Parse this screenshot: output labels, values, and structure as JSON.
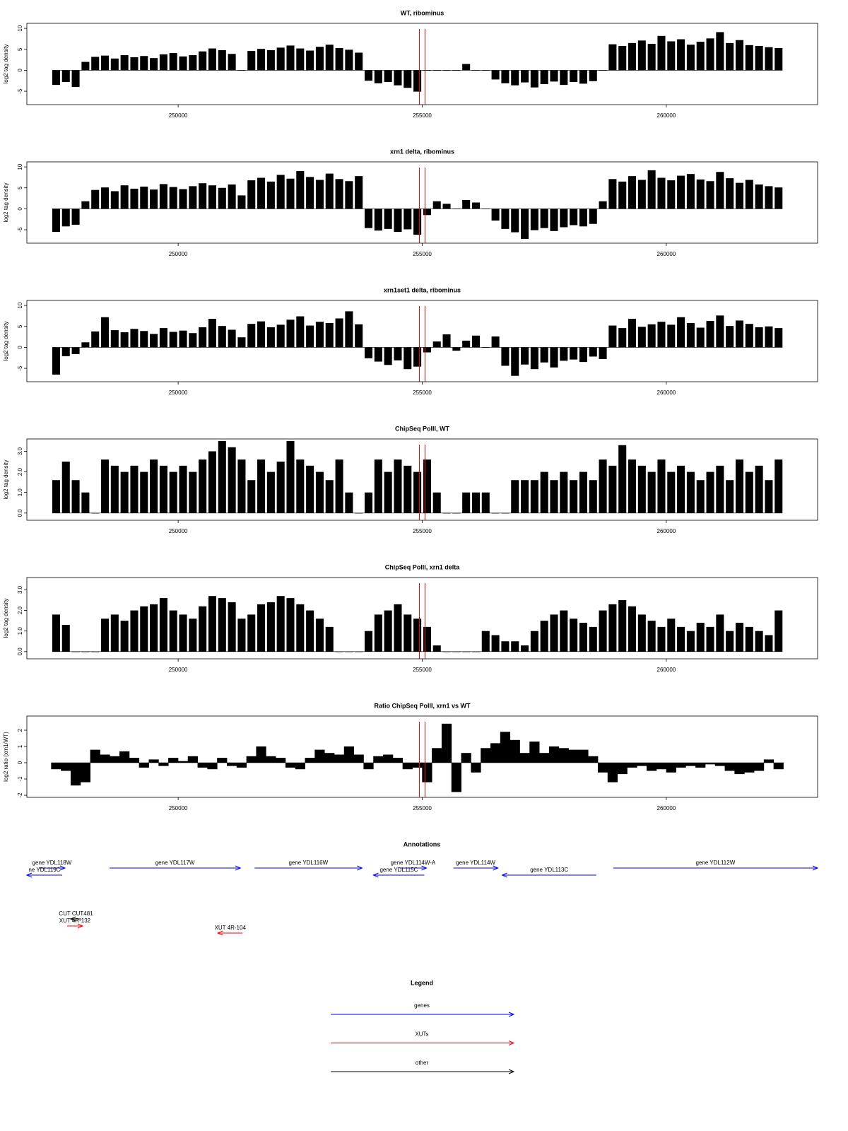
{
  "chart_data": [
    {
      "type": "bar",
      "title": "WT, ribominus",
      "ylabel": "log2 tag density",
      "color": "#000000",
      "x": [
        247500,
        247700,
        247900,
        248100,
        248300,
        248500,
        248700,
        248900,
        249100,
        249300,
        249500,
        249700,
        249900,
        250100,
        250300,
        250500,
        250700,
        250900,
        251100,
        251300,
        251500,
        251700,
        251900,
        252100,
        252300,
        252500,
        252700,
        252900,
        253100,
        253300,
        253500,
        253700,
        253900,
        254100,
        254300,
        254500,
        254700,
        254900,
        255100,
        255300,
        255500,
        255700,
        255900,
        256100,
        256300,
        256500,
        256700,
        256900,
        257100,
        257300,
        257500,
        257700,
        257900,
        258100,
        258300,
        258500,
        258700,
        258900,
        259100,
        259300,
        259500,
        259700,
        259900,
        260100,
        260300,
        260500,
        260700,
        260900,
        261100,
        261300,
        261500,
        261700,
        261900,
        262100,
        262300
      ],
      "values": [
        -3.5,
        -2.8,
        -4,
        2,
        3.2,
        3.5,
        2.8,
        3.6,
        3.1,
        3.4,
        2.9,
        3.8,
        4.1,
        3.3,
        3.6,
        4.5,
        5.2,
        4.8,
        3.9,
        0,
        4.6,
        5.1,
        4.8,
        5.4,
        5.9,
        5.2,
        4.7,
        5.6,
        6.1,
        5.3,
        4.9,
        4.2,
        -2.5,
        -3.1,
        -2.8,
        -3.6,
        -4.2,
        -5.1,
        0,
        0,
        0,
        0,
        1.5,
        0,
        0,
        -2.2,
        -3.1,
        -3.6,
        -2.9,
        -4.1,
        -3.3,
        -2.7,
        -3.5,
        -2.8,
        -3.2,
        -2.6,
        0,
        6.2,
        5.8,
        6.5,
        7.1,
        6.3,
        8.2,
        6.9,
        7.4,
        6.1,
        6.8,
        7.6,
        9.1,
        6.5,
        7.2,
        6.0,
        5.8,
        5.5,
        5.3
      ],
      "xlim": [
        246900,
        263100
      ],
      "xticks": [
        250000,
        255000,
        260000
      ],
      "ylim": [
        -8.2,
        11.2
      ],
      "yticks": [
        -5,
        0,
        5,
        10
      ],
      "vlines": [
        254942,
        255058
      ],
      "vline_color": "#ff0000"
    },
    {
      "type": "bar",
      "title": "xrn1 delta, ribominus",
      "ylabel": "log2 tag density",
      "color": "#000000",
      "x": [
        247500,
        247700,
        247900,
        248100,
        248300,
        248500,
        248700,
        248900,
        249100,
        249300,
        249500,
        249700,
        249900,
        250100,
        250300,
        250500,
        250700,
        250900,
        251100,
        251300,
        251500,
        251700,
        251900,
        252100,
        252300,
        252500,
        252700,
        252900,
        253100,
        253300,
        253500,
        253700,
        253900,
        254100,
        254300,
        254500,
        254700,
        254900,
        255100,
        255300,
        255500,
        255700,
        255900,
        256100,
        256300,
        256500,
        256700,
        256900,
        257100,
        257300,
        257500,
        257700,
        257900,
        258100,
        258300,
        258500,
        258700,
        258900,
        259100,
        259300,
        259500,
        259700,
        259900,
        260100,
        260300,
        260500,
        260700,
        260900,
        261100,
        261300,
        261500,
        261700,
        261900,
        262100,
        262300
      ],
      "values": [
        -5.5,
        -4.2,
        -3.8,
        1.8,
        4.5,
        5.1,
        4.2,
        5.6,
        4.8,
        5.3,
        4.6,
        5.9,
        5.2,
        4.7,
        5.4,
        6.1,
        5.6,
        5.0,
        5.8,
        3.2,
        6.8,
        7.4,
        6.5,
        8.1,
        7.2,
        9.0,
        7.6,
        6.9,
        8.4,
        7.1,
        6.6,
        7.8,
        -4.6,
        -5.2,
        -4.8,
        -5.5,
        -4.9,
        -6.2,
        -1.5,
        1.8,
        1.2,
        0,
        2.1,
        1.5,
        0,
        -2.8,
        -4.8,
        -5.6,
        -7.2,
        -5.1,
        -4.6,
        -5.3,
        -4.4,
        -3.9,
        -4.2,
        -3.6,
        1.8,
        7.1,
        6.5,
        7.8,
        6.9,
        9.2,
        7.4,
        6.8,
        7.9,
        8.3,
        7.0,
        6.6,
        8.8,
        7.3,
        6.2,
        6.9,
        5.8,
        5.4,
        5.1
      ],
      "xlim": [
        246900,
        263100
      ],
      "xticks": [
        250000,
        255000,
        260000
      ],
      "ylim": [
        -8.2,
        11.2
      ],
      "yticks": [
        -5,
        0,
        5,
        10
      ],
      "vlines": [
        254942,
        255058
      ],
      "vline_color": "#ff0000"
    },
    {
      "type": "bar",
      "title": "xrn1set1 delta, ribominus",
      "ylabel": "log2 tag density",
      "color": "#000000",
      "x": [
        247500,
        247700,
        247900,
        248100,
        248300,
        248500,
        248700,
        248900,
        249100,
        249300,
        249500,
        249700,
        249900,
        250100,
        250300,
        250500,
        250700,
        250900,
        251100,
        251300,
        251500,
        251700,
        251900,
        252100,
        252300,
        252500,
        252700,
        252900,
        253100,
        253300,
        253500,
        253700,
        253900,
        254100,
        254300,
        254500,
        254700,
        254900,
        255100,
        255300,
        255500,
        255700,
        255900,
        256100,
        256300,
        256500,
        256700,
        256900,
        257100,
        257300,
        257500,
        257700,
        257900,
        258100,
        258300,
        258500,
        258700,
        258900,
        259100,
        259300,
        259500,
        259700,
        259900,
        260100,
        260300,
        260500,
        260700,
        260900,
        261100,
        261300,
        261500,
        261700,
        261900,
        262100,
        262300
      ],
      "values": [
        -6.5,
        -2.1,
        -1.6,
        1.2,
        3.8,
        7.2,
        4.1,
        3.6,
        4.4,
        3.9,
        3.2,
        4.6,
        3.7,
        4.0,
        3.4,
        4.8,
        6.8,
        5.1,
        4.2,
        2.4,
        5.6,
        6.2,
        4.8,
        5.4,
        6.6,
        7.4,
        5.2,
        6.1,
        5.8,
        6.9,
        8.6,
        5.5,
        -2.6,
        -3.4,
        -4.2,
        -3.1,
        -5.2,
        -4.6,
        -1.2,
        1.4,
        3.1,
        -0.8,
        1.6,
        2.8,
        0,
        2.6,
        -4.4,
        -6.8,
        -4.1,
        -5.2,
        -3.6,
        -4.8,
        -3.2,
        -2.9,
        -3.5,
        -2.2,
        -2.8,
        5.2,
        4.6,
        6.8,
        4.9,
        5.5,
        6.1,
        5.4,
        7.2,
        5.8,
        4.7,
        6.3,
        7.6,
        5.1,
        6.4,
        5.6,
        4.8,
        5.0,
        4.6
      ],
      "xlim": [
        246900,
        263100
      ],
      "xticks": [
        250000,
        255000,
        260000
      ],
      "ylim": [
        -8.2,
        11.2
      ],
      "yticks": [
        -5,
        0,
        5,
        10
      ],
      "vlines": [
        254942,
        255058
      ],
      "vline_color": "#ff0000"
    },
    {
      "type": "bar",
      "title": "ChipSeq PolII, WT",
      "ylabel": "log2 tag density",
      "color": "#000000",
      "x": [
        247500,
        247700,
        247900,
        248100,
        248300,
        248500,
        248700,
        248900,
        249100,
        249300,
        249500,
        249700,
        249900,
        250100,
        250300,
        250500,
        250700,
        250900,
        251100,
        251300,
        251500,
        251700,
        251900,
        252100,
        252300,
        252500,
        252700,
        252900,
        253100,
        253300,
        253500,
        253700,
        253900,
        254100,
        254300,
        254500,
        254700,
        254900,
        255100,
        255300,
        255500,
        255700,
        255900,
        256100,
        256300,
        256500,
        256700,
        256900,
        257100,
        257300,
        257500,
        257700,
        257900,
        258100,
        258300,
        258500,
        258700,
        258900,
        259100,
        259300,
        259500,
        259700,
        259900,
        260100,
        260300,
        260500,
        260700,
        260900,
        261100,
        261300,
        261500,
        261700,
        261900,
        262100,
        262300
      ],
      "values": [
        1.6,
        2.5,
        1.6,
        1.0,
        0,
        2.6,
        2.3,
        2.0,
        2.3,
        2.0,
        2.6,
        2.3,
        2.0,
        2.3,
        2.0,
        2.6,
        3.0,
        3.5,
        3.2,
        2.6,
        1.6,
        2.6,
        2.0,
        2.5,
        3.5,
        2.6,
        2.3,
        2.0,
        1.6,
        2.6,
        1.0,
        0,
        1.0,
        2.6,
        2.0,
        2.6,
        2.3,
        2.0,
        2.6,
        1.0,
        0,
        0,
        1.0,
        1.0,
        1.0,
        0,
        0,
        1.6,
        1.6,
        1.6,
        2.0,
        1.6,
        2.0,
        1.6,
        2.0,
        1.6,
        2.6,
        2.3,
        3.3,
        2.6,
        2.3,
        2.0,
        2.6,
        2.0,
        2.3,
        2.0,
        1.6,
        2.0,
        2.3,
        1.6,
        2.6,
        2.0,
        2.3,
        1.6,
        2.6
      ],
      "xlim": [
        246900,
        263100
      ],
      "xticks": [
        250000,
        255000,
        260000
      ],
      "ylim": [
        -0.35,
        3.6
      ],
      "yticks": [
        {
          "value": 0,
          "label": "0.0"
        },
        {
          "value": 1,
          "label": "1.0"
        },
        {
          "value": 2,
          "label": "2.0"
        },
        {
          "value": 3,
          "label": "3.0"
        }
      ],
      "vlines": [
        254942,
        255058
      ],
      "vline_color": "#ff0000"
    },
    {
      "type": "bar",
      "title": "ChipSeq PolII, xrn1 delta",
      "ylabel": "log2 tag density",
      "color": "#000000",
      "x": [
        247500,
        247700,
        247900,
        248100,
        248300,
        248500,
        248700,
        248900,
        249100,
        249300,
        249500,
        249700,
        249900,
        250100,
        250300,
        250500,
        250700,
        250900,
        251100,
        251300,
        251500,
        251700,
        251900,
        252100,
        252300,
        252500,
        252700,
        252900,
        253100,
        253300,
        253500,
        253700,
        253900,
        254100,
        254300,
        254500,
        254700,
        254900,
        255100,
        255300,
        255500,
        255700,
        255900,
        256100,
        256300,
        256500,
        256700,
        256900,
        257100,
        257300,
        257500,
        257700,
        257900,
        258100,
        258300,
        258500,
        258700,
        258900,
        259100,
        259300,
        259500,
        259700,
        259900,
        260100,
        260300,
        260500,
        260700,
        260900,
        261100,
        261300,
        261500,
        261700,
        261900,
        262100,
        262300
      ],
      "values": [
        1.8,
        1.3,
        0,
        0,
        0,
        1.6,
        1.8,
        1.5,
        2.0,
        2.2,
        2.3,
        2.6,
        2.0,
        1.8,
        1.6,
        2.2,
        2.7,
        2.6,
        2.4,
        1.6,
        1.8,
        2.3,
        2.4,
        2.7,
        2.6,
        2.3,
        2.0,
        1.6,
        1.2,
        0,
        0,
        0,
        1.0,
        1.8,
        2.0,
        2.3,
        1.8,
        1.6,
        1.2,
        0.3,
        0,
        0,
        0,
        0,
        1.0,
        0.8,
        0.5,
        0.5,
        0.3,
        1.0,
        1.5,
        1.8,
        2.0,
        1.6,
        1.4,
        1.2,
        2.0,
        2.3,
        2.5,
        2.2,
        1.8,
        1.5,
        1.2,
        1.6,
        1.2,
        1.0,
        1.4,
        1.2,
        1.8,
        1.0,
        1.4,
        1.2,
        1.0,
        0.8,
        2.0
      ],
      "xlim": [
        246900,
        263100
      ],
      "xticks": [
        250000,
        255000,
        260000
      ],
      "ylim": [
        -0.35,
        3.6
      ],
      "yticks": [
        {
          "value": 0,
          "label": "0.0"
        },
        {
          "value": 1,
          "label": "1.0"
        },
        {
          "value": 2,
          "label": "2.0"
        },
        {
          "value": 3,
          "label": "3.0"
        }
      ],
      "vlines": [
        254942,
        255058
      ],
      "vline_color": "#ff0000"
    },
    {
      "type": "area",
      "title": "Ratio ChipSeq PolII, xrn1 vs WT",
      "ylabel": "log2 ratio (xrn1/WT)",
      "color": "#000000",
      "x": [
        247500,
        247700,
        247900,
        248100,
        248300,
        248500,
        248700,
        248900,
        249100,
        249300,
        249500,
        249700,
        249900,
        250100,
        250300,
        250500,
        250700,
        250900,
        251100,
        251300,
        251500,
        251700,
        251900,
        252100,
        252300,
        252500,
        252700,
        252900,
        253100,
        253300,
        253500,
        253700,
        253900,
        254100,
        254300,
        254500,
        254700,
        254900,
        255100,
        255300,
        255500,
        255700,
        255900,
        256100,
        256300,
        256500,
        256700,
        256900,
        257100,
        257300,
        257500,
        257700,
        257900,
        258100,
        258300,
        258500,
        258700,
        258900,
        259100,
        259300,
        259500,
        259700,
        259900,
        260100,
        260300,
        260500,
        260700,
        260900,
        261100,
        261300,
        261500,
        261700,
        261900,
        262100,
        262300
      ],
      "values": [
        -0.4,
        -0.5,
        -1.4,
        -1.2,
        0.8,
        0.5,
        0.4,
        0.7,
        0.3,
        -0.3,
        0.2,
        -0.2,
        0.3,
        0.1,
        0.4,
        -0.3,
        -0.4,
        0.3,
        -0.2,
        -0.3,
        0.4,
        1.0,
        0.4,
        0.3,
        -0.3,
        -0.4,
        0.3,
        0.8,
        0.6,
        0.5,
        1.0,
        0.5,
        -0.4,
        0.4,
        0.5,
        0.3,
        -0.4,
        -0.3,
        -1.2,
        0.9,
        2.4,
        -1.8,
        0.6,
        -0.6,
        0.9,
        1.2,
        1.9,
        1.4,
        0.6,
        1.3,
        0.6,
        1.0,
        0.9,
        0.8,
        0.8,
        0.4,
        -0.6,
        -1.2,
        -0.7,
        -0.3,
        -0.2,
        -0.5,
        -0.4,
        -0.6,
        -0.3,
        -0.2,
        -0.3,
        -0.1,
        -0.2,
        -0.5,
        -0.7,
        -0.6,
        -0.5,
        0.2,
        -0.4
      ],
      "xlim": [
        246900,
        263100
      ],
      "xticks": [
        250000,
        255000,
        260000
      ],
      "ylim": [
        -2.13,
        2.87
      ],
      "yticks": [
        -2,
        -1,
        0,
        1,
        2
      ],
      "vlines": [
        254942,
        255058
      ],
      "vline_color": "#ff0000"
    }
  ],
  "annotations": {
    "title": "Annotations",
    "xlim": [
      246900,
      263100
    ],
    "genes": [
      {
        "label": "gene YDL118W",
        "start": 247145,
        "end": 247681,
        "strand": "+",
        "color": "#0000ff"
      },
      {
        "label": "ne YDL119C",
        "start": 246899,
        "end": 247623,
        "strand": "-",
        "color": "#0000ff"
      },
      {
        "label": "gene YDL117W",
        "start": 248594,
        "end": 251275,
        "strand": "+",
        "color": "#0000ff"
      },
      {
        "label": "gene YDL116W",
        "start": 251565,
        "end": 253768,
        "strand": "+",
        "color": "#0000ff"
      },
      {
        "label": "gene YDL115C",
        "start": 254000,
        "end": 255043,
        "strand": "-",
        "color": "#0000ff"
      },
      {
        "label": "gene YDL114W-A",
        "start": 254536,
        "end": 255087,
        "strand": "+",
        "color": "#0000ff"
      },
      {
        "label": "gene YDL114W",
        "start": 255638,
        "end": 256551,
        "strand": "+",
        "color": "#0000ff"
      },
      {
        "label": "gene YDL113C",
        "start": 256638,
        "end": 258565,
        "strand": "-",
        "color": "#0000ff"
      },
      {
        "label": "gene YDL112W",
        "start": 258913,
        "end": 263100,
        "strand": "+",
        "color": "#0000ff"
      }
    ],
    "features": [
      {
        "label": "CUT CUT481",
        "start": 247797,
        "end": 248014,
        "strand": "-",
        "color": "#000000"
      },
      {
        "label": "XUT 4R-132",
        "start": 247725,
        "end": 248043,
        "strand": "+",
        "color": "#ff0000"
      },
      {
        "label": "XUT 4R-104",
        "start": 250812,
        "end": 251319,
        "strand": "-",
        "color": "#ff0000"
      }
    ]
  },
  "legend": {
    "title": "Legend",
    "items": [
      {
        "label": "genes",
        "color": "#0000ff"
      },
      {
        "label": "XUTs",
        "color": "#ff0000"
      },
      {
        "label": "other",
        "color": "#000000"
      }
    ]
  }
}
